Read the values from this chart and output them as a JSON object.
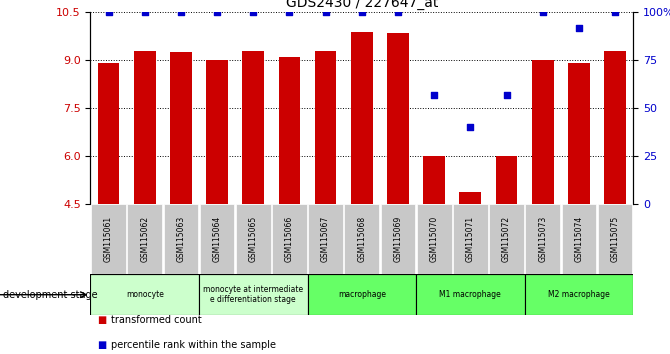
{
  "title": "GDS2430 / 227647_at",
  "samples": [
    "GSM115061",
    "GSM115062",
    "GSM115063",
    "GSM115064",
    "GSM115065",
    "GSM115066",
    "GSM115067",
    "GSM115068",
    "GSM115069",
    "GSM115070",
    "GSM115071",
    "GSM115072",
    "GSM115073",
    "GSM115074",
    "GSM115075"
  ],
  "bar_values": [
    8.9,
    9.3,
    9.25,
    9.0,
    9.3,
    9.1,
    9.3,
    9.9,
    9.85,
    6.0,
    4.85,
    6.0,
    9.0,
    8.9,
    9.3
  ],
  "dot_values": [
    100,
    100,
    100,
    100,
    100,
    100,
    100,
    100,
    100,
    57,
    40,
    57,
    100,
    92,
    100
  ],
  "ylim_left": [
    4.5,
    10.5
  ],
  "ylim_right": [
    0,
    100
  ],
  "yticks_left": [
    4.5,
    6.0,
    7.5,
    9.0,
    10.5
  ],
  "yticks_right": [
    0,
    25,
    50,
    75,
    100
  ],
  "bar_color": "#cc0000",
  "dot_color": "#0000cc",
  "bar_bottom": 4.5,
  "group_defs": [
    {
      "label": "monocyte",
      "start": 0,
      "end": 2,
      "color": "#ccffcc"
    },
    {
      "label": "monocyte at intermediate\ne differentiation stage",
      "start": 3,
      "end": 5,
      "color": "#ccffcc"
    },
    {
      "label": "macrophage",
      "start": 6,
      "end": 8,
      "color": "#66ff66"
    },
    {
      "label": "M1 macrophage",
      "start": 9,
      "end": 11,
      "color": "#66ff66"
    },
    {
      "label": "M2 macrophage",
      "start": 12,
      "end": 14,
      "color": "#66ff66"
    }
  ],
  "dev_stage_label": "development stage",
  "legend_bar": "transformed count",
  "legend_dot": "percentile rank within the sample",
  "bg_color": "#ffffff",
  "tick_label_bg": "#c8c8c8"
}
